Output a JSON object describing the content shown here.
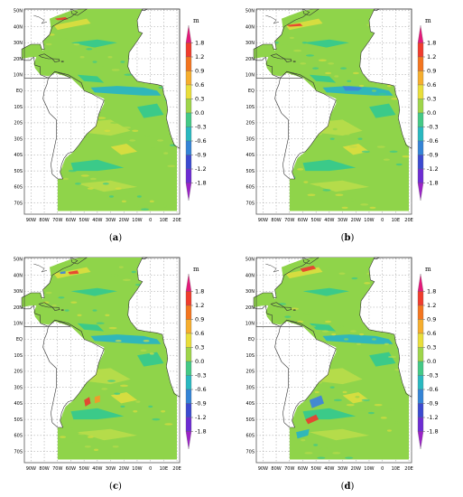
{
  "figure": {
    "unit_label": "m",
    "colorbar": {
      "labels": [
        "1.8",
        "1.2",
        "0.9",
        "0.6",
        "0.3",
        "0.0",
        "-0.3",
        "-0.6",
        "-0.9",
        "-1.2",
        "-1.8"
      ],
      "colors": [
        "#e4197a",
        "#f03c2d",
        "#f3751f",
        "#f6ae2e",
        "#e9de3a",
        "#9ed54a",
        "#44c986",
        "#2ab8c0",
        "#3484d6",
        "#3c4ad0",
        "#6d2cd3",
        "#9b22c7"
      ]
    },
    "lat_labels": [
      "50N",
      "40N",
      "30N",
      "20N",
      "10N",
      "EQ",
      "10S",
      "20S",
      "30S",
      "40S",
      "50S",
      "60S",
      "70S"
    ],
    "lon_labels": [
      "90W",
      "80W",
      "70W",
      "60W",
      "50W",
      "40W",
      "30W",
      "20W",
      "10W",
      "0",
      "10E",
      "20E"
    ],
    "ocean_colors": {
      "base": "#8fd44a",
      "light": "#b7dc4a",
      "yellow": "#d9dd3f",
      "teal": "#37c98c",
      "cyan": "#2bb5c0",
      "blue": "#3f86d8",
      "red": "#e74130",
      "orange": "#f19a2a"
    },
    "panels": [
      {
        "id": "a",
        "caption_open": "(",
        "caption_letter": "a",
        "caption_close": ")"
      },
      {
        "id": "b",
        "caption_open": "(",
        "caption_letter": "b",
        "caption_close": ")"
      },
      {
        "id": "c",
        "caption_open": "(",
        "caption_letter": "c",
        "caption_close": ")"
      },
      {
        "id": "d",
        "caption_open": "(",
        "caption_letter": "d",
        "caption_close": ")"
      }
    ]
  }
}
